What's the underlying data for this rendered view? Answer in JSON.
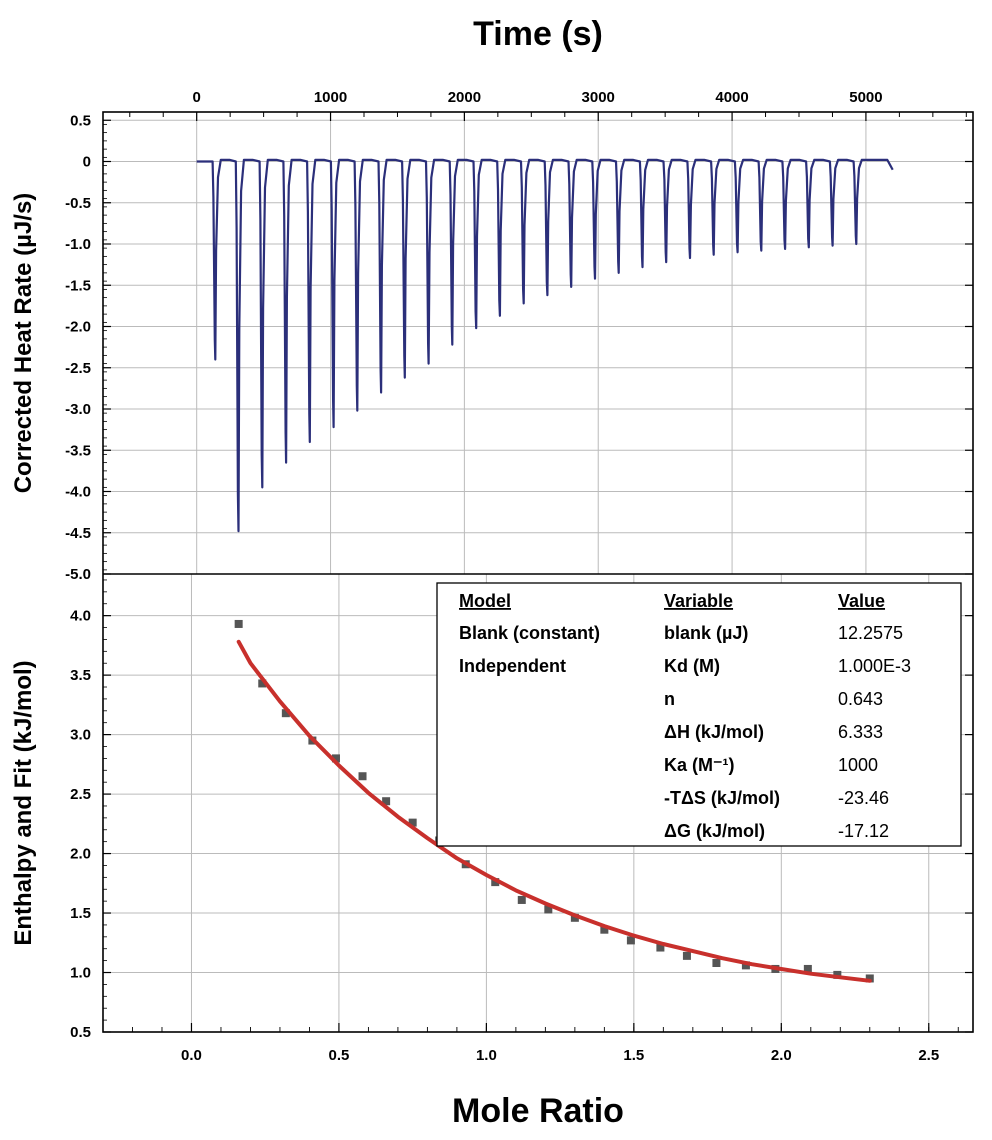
{
  "title_top": "Time (s)",
  "xlabel_bottom": "Mole Ratio",
  "colors": {
    "thermogram": "#2b2f7a",
    "fit": "#c8302c",
    "points": "#555555",
    "axis": "#000000",
    "grid": "#bbbbbb"
  },
  "chart_data": [
    {
      "type": "line",
      "name": "thermogram",
      "xlabel": "Time (s)",
      "ylabel": "Corrected Heat Rate (µJ/s)",
      "xlim": [
        -700,
        5800
      ],
      "ylim": [
        -5.0,
        0.6
      ],
      "x_ticks": [
        0,
        1000,
        2000,
        3000,
        4000,
        5000
      ],
      "y_ticks": [
        "0.5",
        "0",
        "-0.5",
        "-1.0",
        "-1.5",
        "-2.0",
        "-2.5",
        "-3.0",
        "-3.5",
        "-4.0",
        "-4.5",
        "-5.0"
      ],
      "grid": true,
      "baseline": 0,
      "trace_start": 0,
      "trace_end": 5200,
      "end_value": -0.1,
      "injections": {
        "times": [
          125,
          298,
          476,
          654,
          831,
          1009,
          1186,
          1364,
          1541,
          1719,
          1896,
          2074,
          2251,
          2429,
          2606,
          2784,
          2962,
          3139,
          3317,
          3494,
          3672,
          3849,
          4027,
          4204,
          4382,
          4559,
          4737,
          4914
        ],
        "peak_values": [
          -2.4,
          -4.48,
          -3.95,
          -3.65,
          -3.4,
          -3.22,
          -3.02,
          -2.8,
          -2.62,
          -2.45,
          -2.22,
          -2.02,
          -1.87,
          -1.72,
          -1.62,
          -1.52,
          -1.42,
          -1.35,
          -1.28,
          -1.22,
          -1.17,
          -1.13,
          -1.1,
          -1.08,
          -1.06,
          -1.04,
          -1.02,
          -1.0
        ]
      }
    },
    {
      "type": "scatter",
      "name": "enthalpy",
      "xlabel": "Mole Ratio",
      "ylabel": "Enthalpy and Fit (kJ/mol)",
      "xlim": [
        -0.3,
        2.65
      ],
      "ylim": [
        0.5,
        4.35
      ],
      "x_ticks": [
        "0.0",
        "0.5",
        "1.0",
        "1.5",
        "2.0",
        "2.5"
      ],
      "y_ticks": [
        "0.5",
        "1.0",
        "1.5",
        "2.0",
        "2.5",
        "3.0",
        "3.5",
        "4.0"
      ],
      "grid": true,
      "x": [
        0.16,
        0.24,
        0.32,
        0.41,
        0.49,
        0.58,
        0.66,
        0.75,
        0.84,
        0.93,
        1.03,
        1.12,
        1.21,
        1.3,
        1.4,
        1.49,
        1.59,
        1.68,
        1.78,
        1.88,
        1.98,
        2.09,
        2.19,
        2.3
      ],
      "y": [
        3.93,
        3.43,
        3.18,
        2.95,
        2.8,
        2.65,
        2.44,
        2.26,
        2.11,
        1.91,
        1.76,
        1.61,
        1.53,
        1.46,
        1.36,
        1.27,
        1.21,
        1.14,
        1.08,
        1.06,
        1.03,
        1.03,
        0.98,
        0.95
      ],
      "fit": {
        "x": [
          0.16,
          0.2,
          0.3,
          0.4,
          0.5,
          0.6,
          0.7,
          0.8,
          0.9,
          1.0,
          1.1,
          1.2,
          1.3,
          1.4,
          1.5,
          1.6,
          1.7,
          1.8,
          1.9,
          2.0,
          2.1,
          2.2,
          2.3
        ],
        "y": [
          3.78,
          3.6,
          3.28,
          2.99,
          2.74,
          2.51,
          2.31,
          2.13,
          1.96,
          1.82,
          1.69,
          1.58,
          1.48,
          1.39,
          1.31,
          1.24,
          1.18,
          1.12,
          1.07,
          1.03,
          0.99,
          0.96,
          0.93
        ]
      },
      "legend_position": "top-right",
      "results_table": {
        "headers": [
          "Model",
          "Variable",
          "Value"
        ],
        "rows": [
          [
            "Blank (constant)",
            "blank (µJ)",
            "12.2575"
          ],
          [
            "Independent",
            "Kd (M)",
            "1.000E-3"
          ],
          [
            "",
            "n",
            "0.643"
          ],
          [
            "",
            "ΔH (kJ/mol)",
            "6.333"
          ],
          [
            "",
            "Ka (M⁻¹)",
            "1000"
          ],
          [
            "",
            "-TΔS (kJ/mol)",
            "-23.46"
          ],
          [
            "",
            "ΔG (kJ/mol)",
            "-17.12"
          ]
        ]
      }
    }
  ]
}
